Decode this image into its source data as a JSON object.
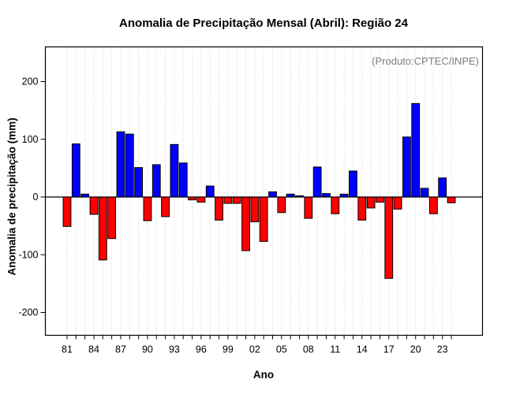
{
  "figure": {
    "title": "Anomalia de Precipitação Mensal (Abril): Região 24",
    "annotation": "(Produto:CPTEC/INPE)"
  },
  "colors": {
    "positive_bar": "#0000ff",
    "negative_bar": "#ff0000",
    "bar_border": "#000000",
    "axis": "#000000",
    "gridline": "#cccccc",
    "annotation_text": "#7b7b7b"
  },
  "chart_data": {
    "type": "bar",
    "title": "Anomalia de Precipitação Mensal (Abril): Região 24",
    "xlabel": "Ano",
    "ylabel": "Anomalia de precipitação (mm)",
    "ylim": [
      -250,
      260
    ],
    "y_ticks": [
      -200,
      -100,
      0,
      100,
      200
    ],
    "grid": "vertical-dotted-per-year",
    "legend_position": "none",
    "x_tick_labels": [
      "81",
      "84",
      "87",
      "90",
      "93",
      "96",
      "99",
      "02",
      "05",
      "08",
      "11",
      "14",
      "17",
      "20",
      "23"
    ],
    "x_label_step": 3,
    "years": [
      1981,
      1982,
      1983,
      1984,
      1985,
      1986,
      1987,
      1988,
      1989,
      1990,
      1991,
      1992,
      1993,
      1994,
      1995,
      1996,
      1997,
      1998,
      1999,
      2000,
      2001,
      2002,
      2003,
      2004,
      2005,
      2006,
      2007,
      2008,
      2009,
      2010,
      2011,
      2012,
      2013,
      2014,
      2015,
      2016,
      2017,
      2018,
      2019,
      2020,
      2021,
      2022,
      2023,
      2024
    ],
    "values": [
      -51,
      92,
      5,
      -30,
      -109,
      -72,
      113,
      109,
      51,
      -41,
      56,
      -34,
      91,
      59,
      -5,
      -9,
      19,
      -40,
      -11,
      -11,
      -93,
      -43,
      -77,
      9,
      -27,
      5,
      2,
      -37,
      52,
      6,
      -29,
      5,
      45,
      -40,
      -19,
      -9,
      -141,
      -21,
      104,
      162,
      15,
      -29,
      33,
      -10
    ]
  }
}
